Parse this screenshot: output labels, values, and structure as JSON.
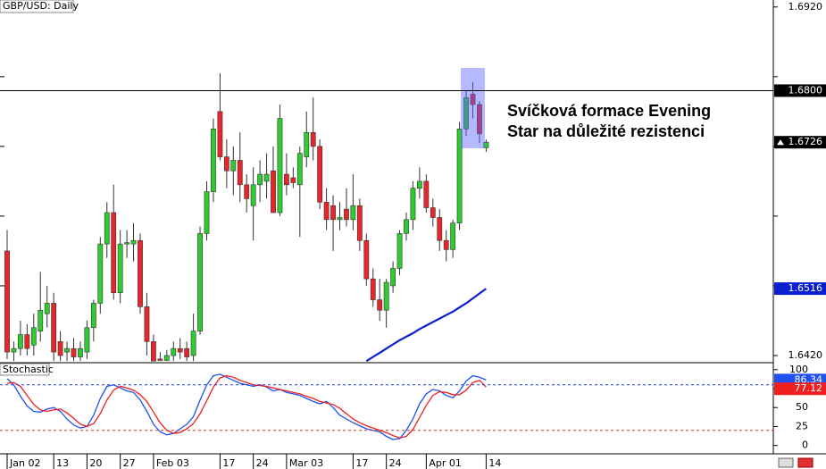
{
  "chart_data": [
    {
      "type": "candlestick",
      "title": "GBP/USD: Daily",
      "categories": [
        "Jan 02",
        null,
        null,
        null,
        null,
        null,
        null,
        "13",
        null,
        null,
        null,
        null,
        "20",
        null,
        null,
        null,
        null,
        "27",
        null,
        null,
        null,
        null,
        "Feb 03",
        null,
        null,
        null,
        null,
        null,
        null,
        null,
        null,
        null,
        "17",
        null,
        null,
        null,
        null,
        "24",
        null,
        null,
        null,
        null,
        "Mar 03",
        null,
        null,
        null,
        null,
        null,
        null,
        null,
        null,
        null,
        "17",
        null,
        null,
        null,
        null,
        "24",
        null,
        null,
        null,
        null,
        null,
        "Apr 01",
        null,
        null,
        null,
        null,
        null,
        null,
        null,
        null,
        "14"
      ],
      "open": [
        1.657,
        1.6425,
        1.643,
        1.645,
        1.6435,
        1.6455,
        1.648,
        1.6495,
        1.644,
        1.6425,
        1.643,
        1.6418,
        1.6425,
        1.646,
        1.6495,
        1.658,
        1.6625,
        1.651,
        1.658,
        1.658,
        1.6585,
        1.649,
        1.644,
        1.6415,
        1.6413,
        1.642,
        1.643,
        1.643,
        1.642,
        1.6455,
        1.6595,
        1.6655,
        1.677,
        1.6705,
        1.6685,
        1.67,
        1.6665,
        1.6635,
        1.6665,
        1.667,
        1.6685,
        1.6625,
        1.668,
        1.6675,
        1.6665,
        1.6705,
        1.674,
        1.672,
        1.664,
        1.6635,
        1.6615,
        1.663,
        1.6615,
        1.6635,
        1.6585,
        1.653,
        1.65,
        1.6485,
        1.652,
        1.6545,
        1.6595,
        1.6615,
        1.666,
        1.667,
        1.6632,
        1.6618,
        1.6585,
        1.6572,
        1.661,
        1.6745,
        1.6795,
        1.678,
        1.6718
      ],
      "high": [
        1.66,
        1.644,
        1.647,
        1.6465,
        1.648,
        1.654,
        1.652,
        1.651,
        1.6455,
        1.644,
        1.6445,
        1.644,
        1.647,
        1.65,
        1.659,
        1.664,
        1.6665,
        1.66,
        1.66,
        1.661,
        1.6595,
        1.651,
        1.645,
        1.6425,
        1.6428,
        1.644,
        1.6445,
        1.644,
        1.648,
        1.6605,
        1.667,
        1.676,
        1.6825,
        1.673,
        1.672,
        1.674,
        1.668,
        1.669,
        1.67,
        1.671,
        1.672,
        1.678,
        1.671,
        1.669,
        1.672,
        1.677,
        1.679,
        1.673,
        1.666,
        1.665,
        1.664,
        1.666,
        1.668,
        1.6645,
        1.6595,
        1.6545,
        1.653,
        1.653,
        1.6555,
        1.66,
        1.6625,
        1.667,
        1.669,
        1.668,
        1.6645,
        1.663,
        1.66,
        1.6615,
        1.6755,
        1.68,
        1.6812,
        1.6785,
        1.673
      ],
      "low": [
        1.6415,
        1.6412,
        1.642,
        1.642,
        1.642,
        1.644,
        1.646,
        1.6412,
        1.6412,
        1.6412,
        1.6412,
        1.6412,
        1.6415,
        1.644,
        1.648,
        1.656,
        1.65,
        1.6495,
        1.656,
        1.6555,
        1.648,
        1.642,
        1.6412,
        1.6412,
        1.6412,
        1.6412,
        1.6415,
        1.6412,
        1.6412,
        1.645,
        1.6585,
        1.664,
        1.67,
        1.666,
        1.665,
        1.664,
        1.6625,
        1.6585,
        1.664,
        1.6645,
        1.6625,
        1.662,
        1.665,
        1.666,
        1.659,
        1.669,
        1.67,
        1.663,
        1.66,
        1.657,
        1.66,
        1.6605,
        1.66,
        1.657,
        1.652,
        1.649,
        1.647,
        1.646,
        1.651,
        1.6535,
        1.6585,
        1.66,
        1.6645,
        1.6625,
        1.6605,
        1.657,
        1.6555,
        1.656,
        1.66,
        1.6735,
        1.676,
        1.6725,
        1.6712
      ],
      "close": [
        1.6425,
        1.643,
        1.645,
        1.643,
        1.646,
        1.6485,
        1.6495,
        1.6425,
        1.642,
        1.643,
        1.6418,
        1.643,
        1.646,
        1.6495,
        1.658,
        1.6625,
        1.651,
        1.658,
        1.6582,
        1.6585,
        1.649,
        1.644,
        1.6412,
        1.6413,
        1.642,
        1.643,
        1.6425,
        1.6418,
        1.6455,
        1.6595,
        1.6655,
        1.6745,
        1.6705,
        1.6685,
        1.67,
        1.6665,
        1.6645,
        1.6665,
        1.668,
        1.668,
        1.6625,
        1.676,
        1.6665,
        1.6668,
        1.671,
        1.674,
        1.672,
        1.664,
        1.6615,
        1.6615,
        1.6618,
        1.6615,
        1.6635,
        1.6585,
        1.653,
        1.65,
        1.6485,
        1.6525,
        1.6545,
        1.6595,
        1.6615,
        1.666,
        1.667,
        1.6632,
        1.6618,
        1.6585,
        1.6572,
        1.661,
        1.6745,
        1.679,
        1.678,
        1.6738,
        1.6726
      ],
      "up_color": "#2ecc2e",
      "down_color": "#e8262a",
      "ma": {
        "color": "#0a1fd0",
        "values": [
          null,
          null,
          null,
          null,
          null,
          null,
          null,
          null,
          null,
          null,
          null,
          null,
          null,
          null,
          null,
          null,
          null,
          null,
          null,
          null,
          null,
          null,
          null,
          null,
          null,
          null,
          null,
          null,
          null,
          null,
          null,
          null,
          null,
          null,
          null,
          null,
          null,
          null,
          null,
          null,
          null,
          null,
          null,
          null,
          null,
          null,
          null,
          null,
          null,
          null,
          null,
          null,
          null,
          null,
          1.6412,
          1.6418,
          1.6424,
          1.643,
          1.6436,
          1.6442,
          1.6447,
          1.6452,
          1.6458,
          1.6463,
          1.6468,
          1.6473,
          1.6478,
          1.6483,
          1.6489,
          1.6495,
          1.6502,
          1.6509,
          1.6516
        ]
      },
      "resistance": {
        "value": 1.68,
        "label": "1.6800"
      },
      "ylim": [
        1.6411,
        1.693
      ],
      "yticks": [
        {
          "value": 1.692,
          "label": "1.6920"
        },
        {
          "value": 1.642,
          "label": "1.6420"
        }
      ],
      "yminor_ticks": [
        1.682,
        1.672,
        1.662,
        1.652
      ],
      "annotation": [
        "Svíčková formace Evening",
        "Star na důležité rezistenci"
      ]
    },
    {
      "type": "line",
      "title": "Stochastic",
      "series": [
        {
          "color": "#2050f0",
          "values": [
            88,
            80,
            65,
            52,
            45,
            44,
            48,
            50,
            45,
            35,
            27,
            23,
            25,
            40,
            62,
            78,
            80,
            76,
            72,
            70,
            60,
            45,
            28,
            18,
            14,
            16,
            22,
            28,
            38,
            60,
            80,
            92,
            94,
            90,
            86,
            82,
            80,
            78,
            80,
            77,
            72,
            74,
            70,
            68,
            66,
            62,
            58,
            55,
            58,
            50,
            40,
            35,
            30,
            26,
            22,
            20,
            18,
            12,
            8,
            9,
            20,
            35,
            55,
            68,
            74,
            72,
            66,
            63,
            72,
            85,
            92,
            90,
            86.34
          ]
        },
        {
          "color": "#f02020",
          "values": [
            82,
            83,
            78,
            66,
            54,
            47,
            45,
            47,
            48,
            43,
            36,
            28,
            25,
            29,
            42,
            60,
            73,
            78,
            76,
            73,
            67,
            58,
            44,
            30,
            20,
            16,
            17,
            22,
            29,
            42,
            59,
            77,
            89,
            92,
            90,
            86,
            83,
            80,
            79,
            78,
            76,
            74,
            72,
            70,
            68,
            65,
            62,
            58,
            56,
            54,
            49,
            42,
            35,
            30,
            26,
            23,
            20,
            17,
            13,
            10,
            12,
            21,
            37,
            53,
            66,
            71,
            70,
            67,
            67,
            73,
            83,
            86,
            77.12
          ]
        }
      ],
      "levels": [
        {
          "value": 80,
          "color": "#2a3ee0"
        },
        {
          "value": 20,
          "color": "#e02a2a"
        }
      ],
      "ylim": [
        -11,
        108
      ],
      "yticks": [
        100,
        75,
        50,
        25,
        0
      ]
    }
  ]
}
